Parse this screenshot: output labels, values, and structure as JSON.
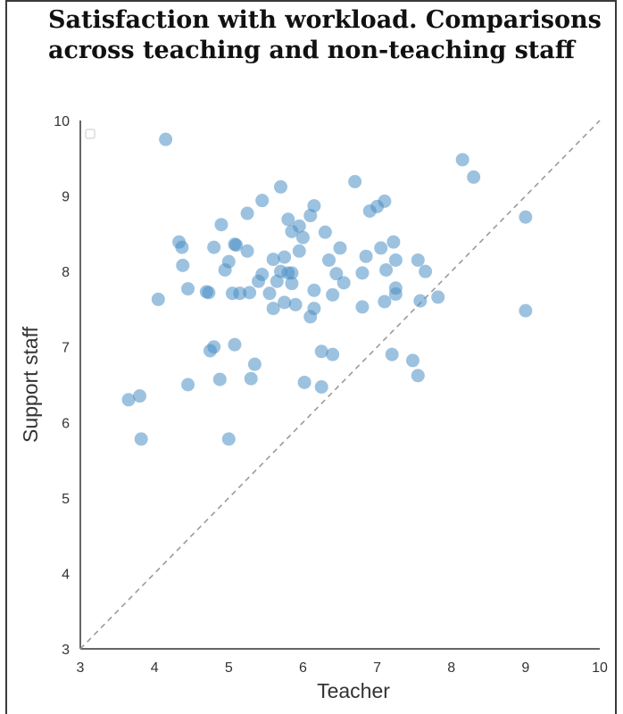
{
  "chart_data": {
    "type": "scatter",
    "title": "Satisfaction with workload. Comparisons across teaching and non-teaching staff",
    "xlabel": "Teacher",
    "ylabel": "Support staff",
    "xlim": [
      3,
      10
    ],
    "ylim": [
      3,
      10
    ],
    "xticks": [
      "3",
      "4",
      "5",
      "6",
      "7",
      "8",
      "9",
      "10"
    ],
    "yticks": [
      "3",
      "4",
      "5",
      "6",
      "7",
      "8",
      "9",
      "10"
    ],
    "grid": false,
    "reference_line": "y = x, dashed grey",
    "marker_color": "#4a90c4",
    "points": [
      [
        4.15,
        9.75
      ],
      [
        8.15,
        9.48
      ],
      [
        8.3,
        9.25
      ],
      [
        6.7,
        9.19
      ],
      [
        5.7,
        9.12
      ],
      [
        5.45,
        8.94
      ],
      [
        7.1,
        8.93
      ],
      [
        7.0,
        8.86
      ],
      [
        6.9,
        8.8
      ],
      [
        6.15,
        8.87
      ],
      [
        5.25,
        8.77
      ],
      [
        4.9,
        8.62
      ],
      [
        5.8,
        8.69
      ],
      [
        6.1,
        8.74
      ],
      [
        5.95,
        8.6
      ],
      [
        5.85,
        8.53
      ],
      [
        6.3,
        8.52
      ],
      [
        6.0,
        8.45
      ],
      [
        9.0,
        8.72
      ],
      [
        4.33,
        8.39
      ],
      [
        4.37,
        8.32
      ],
      [
        4.8,
        8.32
      ],
      [
        5.08,
        8.36
      ],
      [
        5.1,
        8.35
      ],
      [
        5.25,
        8.27
      ],
      [
        5.95,
        8.27
      ],
      [
        6.5,
        8.31
      ],
      [
        7.05,
        8.31
      ],
      [
        7.22,
        8.39
      ],
      [
        5.0,
        8.13
      ],
      [
        5.6,
        8.16
      ],
      [
        5.75,
        8.19
      ],
      [
        6.35,
        8.15
      ],
      [
        6.85,
        8.2
      ],
      [
        7.25,
        8.15
      ],
      [
        7.55,
        8.15
      ],
      [
        4.38,
        8.08
      ],
      [
        4.95,
        8.02
      ],
      [
        5.45,
        7.96
      ],
      [
        5.8,
        7.98
      ],
      [
        5.85,
        7.98
      ],
      [
        5.7,
        8.0
      ],
      [
        6.45,
        7.97
      ],
      [
        6.8,
        7.98
      ],
      [
        7.12,
        8.02
      ],
      [
        7.65,
        8.0
      ],
      [
        5.4,
        7.87
      ],
      [
        5.65,
        7.87
      ],
      [
        5.85,
        7.84
      ],
      [
        6.55,
        7.85
      ],
      [
        4.45,
        7.77
      ],
      [
        4.7,
        7.73
      ],
      [
        4.73,
        7.72
      ],
      [
        5.05,
        7.71
      ],
      [
        5.15,
        7.71
      ],
      [
        5.28,
        7.72
      ],
      [
        5.55,
        7.71
      ],
      [
        6.15,
        7.75
      ],
      [
        7.25,
        7.78
      ],
      [
        6.4,
        7.69
      ],
      [
        7.25,
        7.7
      ],
      [
        7.1,
        7.6
      ],
      [
        7.58,
        7.61
      ],
      [
        7.82,
        7.66
      ],
      [
        4.05,
        7.63
      ],
      [
        5.75,
        7.59
      ],
      [
        5.9,
        7.56
      ],
      [
        5.6,
        7.51
      ],
      [
        6.15,
        7.51
      ],
      [
        6.1,
        7.4
      ],
      [
        6.8,
        7.53
      ],
      [
        9.0,
        7.48
      ],
      [
        5.08,
        7.03
      ],
      [
        4.8,
        7.0
      ],
      [
        4.75,
        6.95
      ],
      [
        6.25,
        6.94
      ],
      [
        6.4,
        6.9
      ],
      [
        7.2,
        6.9
      ],
      [
        7.48,
        6.82
      ],
      [
        5.35,
        6.77
      ],
      [
        5.3,
        6.58
      ],
      [
        4.88,
        6.57
      ],
      [
        4.45,
        6.5
      ],
      [
        6.02,
        6.53
      ],
      [
        6.25,
        6.47
      ],
      [
        7.55,
        6.62
      ],
      [
        3.65,
        6.3
      ],
      [
        3.8,
        6.35
      ],
      [
        3.82,
        5.78
      ],
      [
        5.0,
        5.78
      ]
    ]
  }
}
